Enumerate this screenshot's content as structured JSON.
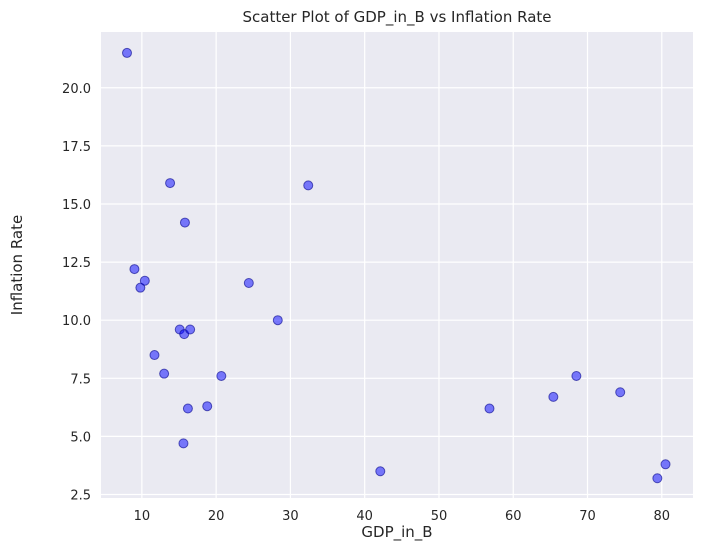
{
  "chart_data": {
    "type": "scatter",
    "title": "Scatter Plot of GDP_in_B vs Inflation Rate",
    "xlabel": "GDP_in_B",
    "ylabel": "Inflation Rate",
    "xlim": [
      4.5,
      84.2
    ],
    "ylim": [
      2.35,
      22.4
    ],
    "xticks": [
      10,
      20,
      30,
      40,
      50,
      60,
      70,
      80
    ],
    "yticks": [
      2.5,
      5.0,
      7.5,
      10.0,
      12.5,
      15.0,
      17.5,
      20.0
    ],
    "xtick_labels": [
      "10",
      "20",
      "30",
      "40",
      "50",
      "60",
      "70",
      "80"
    ],
    "ytick_labels": [
      "2.5",
      "5.0",
      "7.5",
      "10.0",
      "12.5",
      "15.0",
      "17.5",
      "20.0"
    ],
    "grid": true,
    "background_color": "#eaeaf2",
    "grid_color": "#ffffff",
    "point_color": "#0000ff",
    "point_edge_color": "#00008b",
    "point_alpha": 0.5,
    "points": [
      {
        "x": 8.0,
        "y": 21.5
      },
      {
        "x": 9.0,
        "y": 12.2
      },
      {
        "x": 9.8,
        "y": 11.4
      },
      {
        "x": 10.4,
        "y": 11.7
      },
      {
        "x": 11.7,
        "y": 8.5
      },
      {
        "x": 13.0,
        "y": 7.7
      },
      {
        "x": 13.8,
        "y": 15.9
      },
      {
        "x": 15.1,
        "y": 9.6
      },
      {
        "x": 15.6,
        "y": 4.7
      },
      {
        "x": 15.7,
        "y": 9.4
      },
      {
        "x": 15.8,
        "y": 14.2
      },
      {
        "x": 16.2,
        "y": 6.2
      },
      {
        "x": 16.5,
        "y": 9.6
      },
      {
        "x": 18.8,
        "y": 6.3
      },
      {
        "x": 20.7,
        "y": 7.6
      },
      {
        "x": 24.4,
        "y": 11.6
      },
      {
        "x": 28.3,
        "y": 10.0
      },
      {
        "x": 32.4,
        "y": 15.8
      },
      {
        "x": 42.1,
        "y": 3.5
      },
      {
        "x": 56.8,
        "y": 6.2
      },
      {
        "x": 65.4,
        "y": 6.7
      },
      {
        "x": 68.5,
        "y": 7.6
      },
      {
        "x": 74.4,
        "y": 6.9
      },
      {
        "x": 79.4,
        "y": 3.2
      },
      {
        "x": 80.5,
        "y": 3.8
      }
    ]
  }
}
